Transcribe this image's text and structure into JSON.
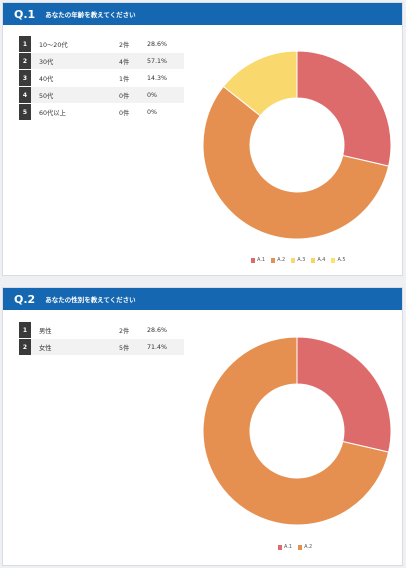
{
  "colors": {
    "header": "#1467b0",
    "a1": "#de6b6b",
    "a2": "#e59050",
    "a3": "#f9d96d",
    "a4": "#f5d760",
    "a5": "#fbe26a"
  },
  "q1": {
    "number": "Q.1",
    "title": "あなたの年齢を教えてください",
    "rows": [
      {
        "num": "1",
        "label": "10〜20代",
        "count": "2件",
        "pct": "28.6%"
      },
      {
        "num": "2",
        "label": "30代",
        "count": "4件",
        "pct": "57.1%"
      },
      {
        "num": "3",
        "label": "40代",
        "count": "1件",
        "pct": "14.3%"
      },
      {
        "num": "4",
        "label": "50代",
        "count": "0件",
        "pct": "0%"
      },
      {
        "num": "5",
        "label": "60代以上",
        "count": "0件",
        "pct": "0%"
      }
    ],
    "legend": [
      "A.1",
      "A.2",
      "A.3",
      "A.4",
      "A.5"
    ]
  },
  "q2": {
    "number": "Q.2",
    "title": "あなたの性別を教えてください",
    "rows": [
      {
        "num": "1",
        "label": "男性",
        "count": "2件",
        "pct": "28.6%"
      },
      {
        "num": "2",
        "label": "女性",
        "count": "5件",
        "pct": "71.4%"
      }
    ],
    "legend": [
      "A.1",
      "A.2"
    ]
  },
  "chart_data": [
    {
      "type": "pie",
      "categories": [
        "A.1",
        "A.2",
        "A.3",
        "A.4",
        "A.5"
      ],
      "values": [
        28.6,
        57.1,
        14.3,
        0,
        0
      ],
      "colors": [
        "#de6b6b",
        "#e59050",
        "#f9d96d",
        "#f5d760",
        "#fbe26a"
      ],
      "legend": "bottom"
    },
    {
      "type": "pie",
      "categories": [
        "A.1",
        "A.2"
      ],
      "values": [
        28.6,
        71.4
      ],
      "colors": [
        "#de6b6b",
        "#e59050"
      ],
      "legend": "bottom"
    }
  ]
}
